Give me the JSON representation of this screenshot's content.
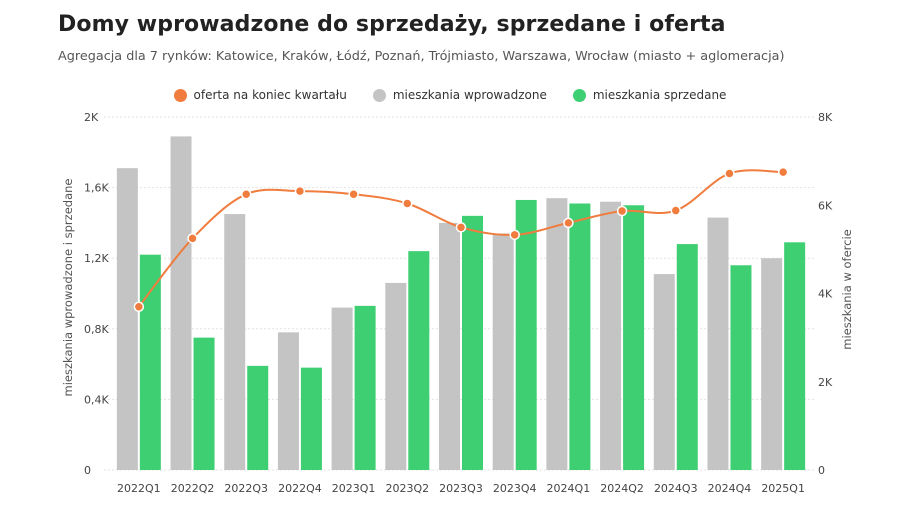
{
  "title": "Domy wprowadzone do sprzedaży, sprzedane i oferta",
  "subtitle": "Agregacja dla 7 rynków: Katowice, Kraków, Łódź, Poznań, Trójmiasto, Warszawa, Wrocław (miasto + aglomeracja)",
  "colors": {
    "offer": "#f07c3e",
    "introduced": "#c4c4c4",
    "sold": "#3ecf73",
    "grid": "#e3e3e3",
    "axis_text": "#444444"
  },
  "legend": [
    {
      "label": "oferta na koniec kwartału",
      "color": "#f07c3e"
    },
    {
      "label": "mieszkania wprowadzone",
      "color": "#c4c4c4"
    },
    {
      "label": "mieszkania sprzedane",
      "color": "#3ecf73"
    }
  ],
  "chart_data": {
    "type": "bar",
    "categories": [
      "2022Q1",
      "2022Q2",
      "2022Q3",
      "2022Q4",
      "2023Q1",
      "2023Q2",
      "2023Q3",
      "2023Q4",
      "2024Q1",
      "2024Q2",
      "2024Q3",
      "2024Q4",
      "2025Q1"
    ],
    "series": [
      {
        "name": "mieszkania wprowadzone",
        "type": "bar",
        "axis": "left",
        "color": "#c4c4c4",
        "values": [
          1710,
          1890,
          1450,
          780,
          920,
          1060,
          1400,
          1340,
          1540,
          1520,
          1110,
          1430,
          1200
        ]
      },
      {
        "name": "mieszkania sprzedane",
        "type": "bar",
        "axis": "left",
        "color": "#3ecf73",
        "values": [
          1220,
          750,
          590,
          580,
          930,
          1240,
          1440,
          1530,
          1510,
          1500,
          1280,
          1160,
          1290
        ]
      },
      {
        "name": "oferta na koniec kwartału",
        "type": "line",
        "axis": "right",
        "color": "#f07c3e",
        "values": [
          3700,
          5250,
          6250,
          6320,
          6250,
          6040,
          5500,
          5330,
          5600,
          5870,
          5880,
          6720,
          6750
        ]
      }
    ],
    "y_left": {
      "label": "mieszkania wprowadzone i sprzedane",
      "min": 0,
      "max": 2000,
      "ticks": [
        0,
        400,
        800,
        1200,
        1600,
        2000
      ],
      "tick_labels": [
        "0",
        "0,4K",
        "0,8K",
        "1,2K",
        "1,6K",
        "2K"
      ]
    },
    "y_right": {
      "label": "mieszkania w ofercie",
      "min": 0,
      "max": 8000,
      "ticks": [
        0,
        2000,
        4000,
        6000,
        8000
      ],
      "tick_labels": [
        "0",
        "2K",
        "4K",
        "6K",
        "8K"
      ]
    },
    "grid": true,
    "legend_position": "top-center"
  }
}
